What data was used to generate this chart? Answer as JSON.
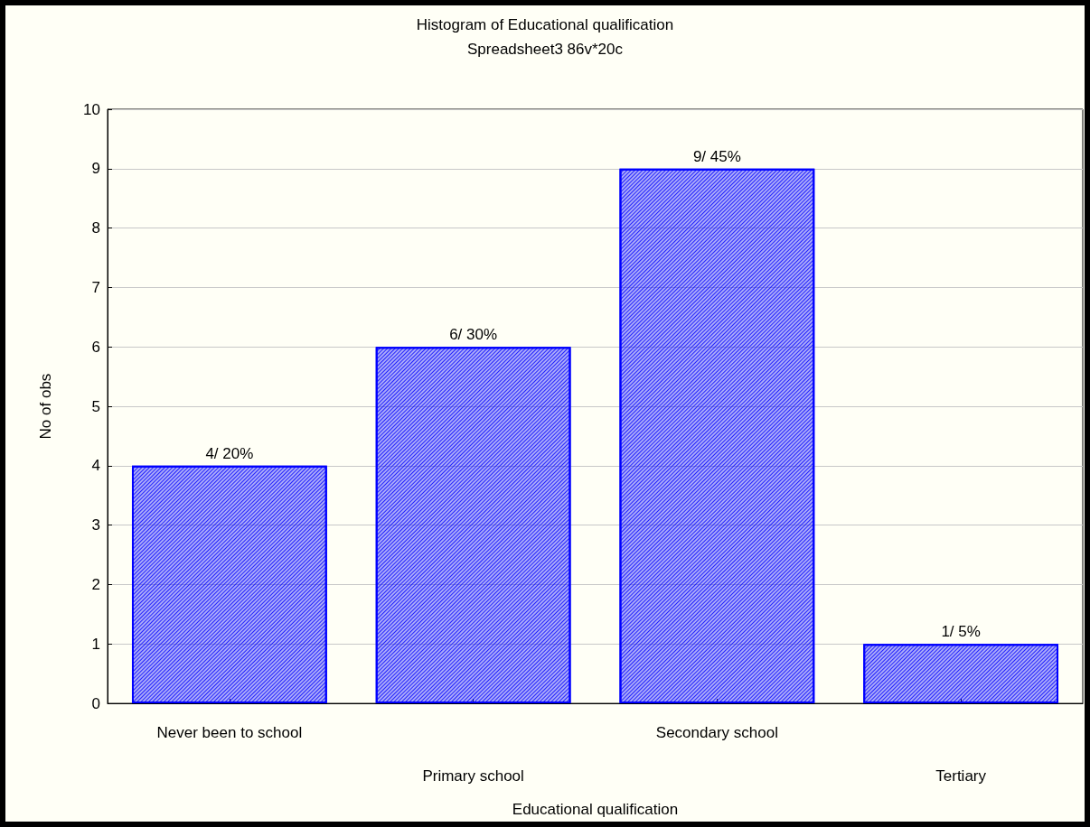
{
  "chart_data": {
    "type": "bar",
    "title": "Histogram of Educational qualification",
    "subtitle": "Spreadsheet3 86v*20c",
    "xlabel": "Educational qualification",
    "ylabel": "No of obs",
    "categories": [
      "Never been to school",
      "Primary school",
      "Secondary school",
      "Tertiary"
    ],
    "values": [
      4,
      6,
      9,
      1
    ],
    "value_labels": [
      "4/ 20%",
      "6/ 30%",
      "9/ 45%",
      "1/ 5%"
    ],
    "color": "#0000ff",
    "ylim": [
      0,
      10
    ],
    "yticks": [
      0,
      1,
      2,
      3,
      4,
      5,
      6,
      7,
      8,
      9,
      10
    ],
    "grid": "y"
  }
}
